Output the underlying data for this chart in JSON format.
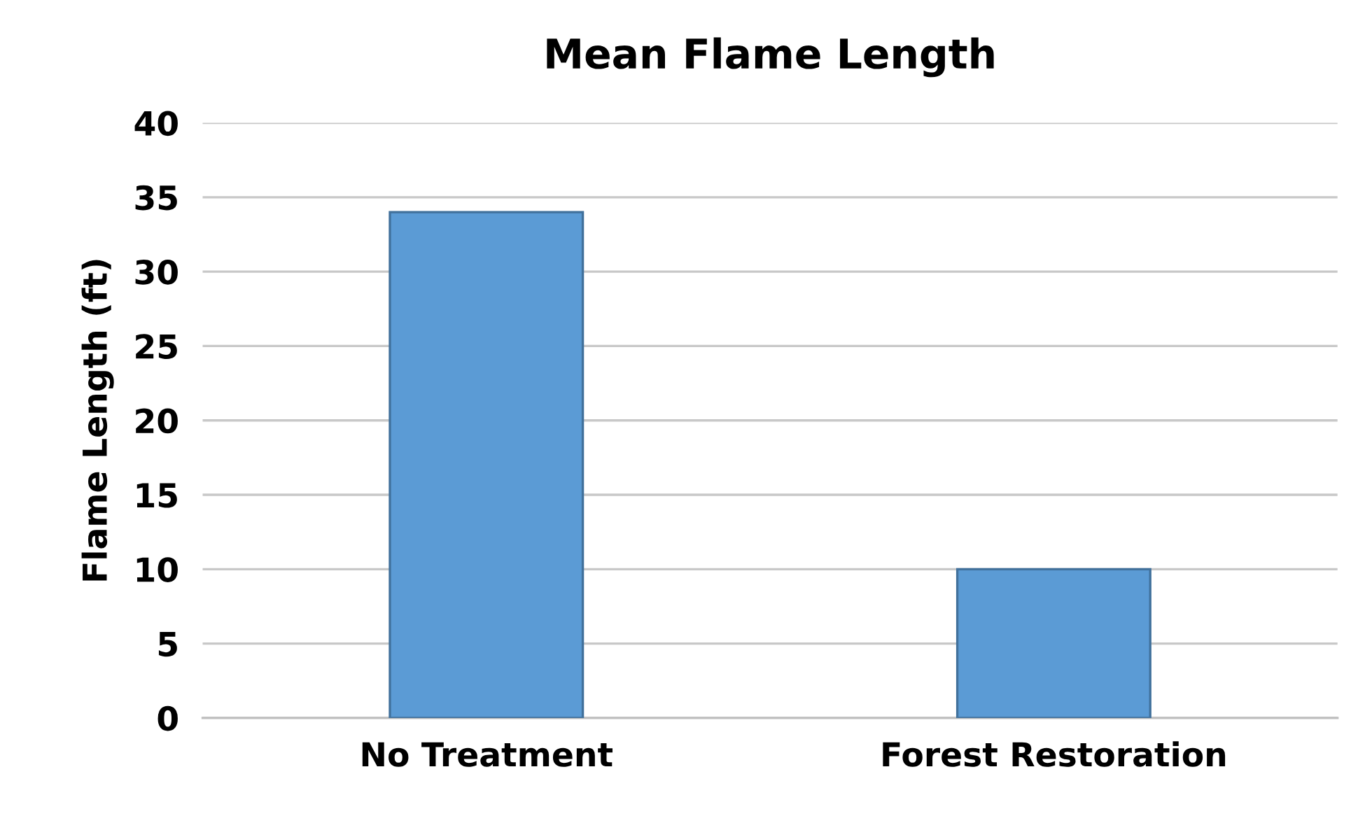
{
  "chart_data": {
    "type": "bar",
    "title": "Mean Flame Length",
    "ylabel": "Flame Length (ft)",
    "categories": [
      "No Treatment",
      "Forest Restoration"
    ],
    "values": [
      34,
      10
    ],
    "color": "#5b9bd5",
    "ylim": [
      0,
      40
    ],
    "yticks": [
      0,
      5,
      10,
      15,
      20,
      25,
      30,
      35,
      40
    ],
    "grid": "y"
  }
}
